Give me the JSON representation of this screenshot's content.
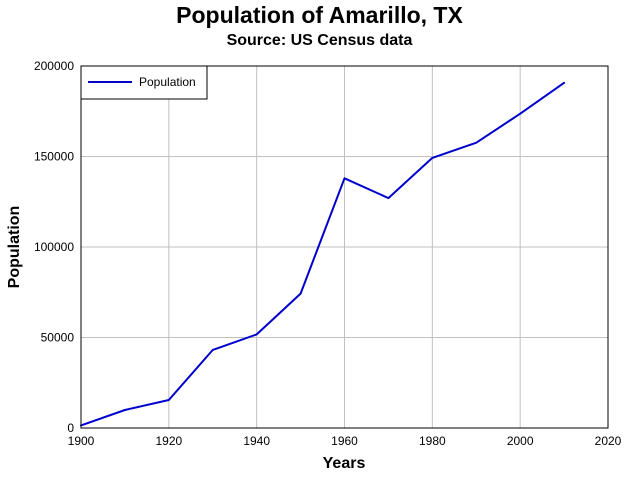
{
  "chart_data": {
    "type": "line",
    "title": "Population of Amarillo, TX",
    "subtitle": "Source: US Census data",
    "xlabel": "Years",
    "ylabel": "Population",
    "xlim": [
      1900,
      2020
    ],
    "ylim": [
      0,
      200000
    ],
    "xticks": [
      1900,
      1920,
      1940,
      1960,
      1980,
      2000,
      2020
    ],
    "yticks": [
      0,
      50000,
      100000,
      150000,
      200000
    ],
    "grid": true,
    "legend": "top-left",
    "colors": {
      "line": "#0000cc",
      "grid": "#c0c0c0",
      "frame": "#000000"
    },
    "series": [
      {
        "name": "Population",
        "x": [
          1900,
          1910,
          1920,
          1930,
          1940,
          1950,
          1960,
          1970,
          1980,
          1990,
          2000,
          2010
        ],
        "y": [
          1442,
          9957,
          15494,
          43132,
          51686,
          74246,
          137969,
          127010,
          149230,
          157615,
          173627,
          190695
        ]
      }
    ]
  }
}
